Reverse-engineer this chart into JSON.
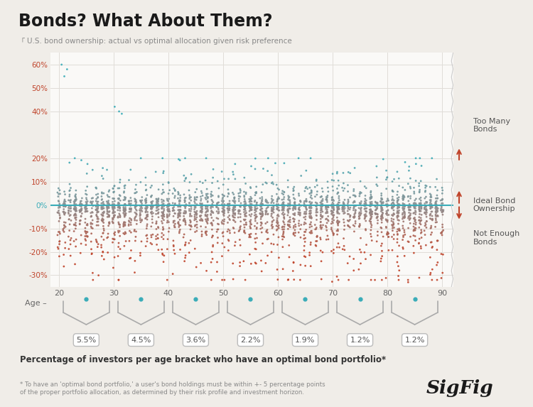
{
  "title": "Bonds? What About Them?",
  "subtitle": "U.S. bond ownership: actual vs optimal allocation given risk preference",
  "ylabel_ticks": [
    "60%",
    "50%",
    "40%",
    "20%",
    "10%",
    "0%",
    "-10%",
    "-20%",
    "-30%"
  ],
  "ylabel_vals": [
    60,
    50,
    40,
    20,
    10,
    0,
    -10,
    -20,
    -30
  ],
  "ylim": [
    -35,
    65
  ],
  "xlim": [
    18.5,
    92
  ],
  "age_ticks": [
    20,
    30,
    40,
    50,
    60,
    70,
    80,
    90
  ],
  "color_teal": "#3aacb8",
  "color_red": "#c0442b",
  "color_gray": "#7a8f8f",
  "hline_color": "#3aacb8",
  "bg_color": "#f0ede8",
  "plot_bg": "#faf9f7",
  "grid_color": "#e0ddd8",
  "annotation_right_top": "Too Many\nBonds",
  "annotation_right_mid": "Ideal Bond\nOwnership",
  "annotation_right_bot": "Not Enough\nBonds",
  "bracket_percents": [
    "5.5%",
    "4.5%",
    "3.6%",
    "2.2%",
    "1.9%",
    "1.2%",
    "1.2%"
  ],
  "bracket_centers_age": [
    25,
    35,
    45,
    55,
    65,
    75,
    85
  ],
  "footnote": "* To have an 'optimal bond portfolio,' a user's bond holdings must be within +- 5 percentage points\nof the proper portfolio allocation, as determined by their risk profile and investment horizon.",
  "bottom_label": "Percentage of investors per age bracket who have an optimal bond portfolio*",
  "seed": 12345
}
